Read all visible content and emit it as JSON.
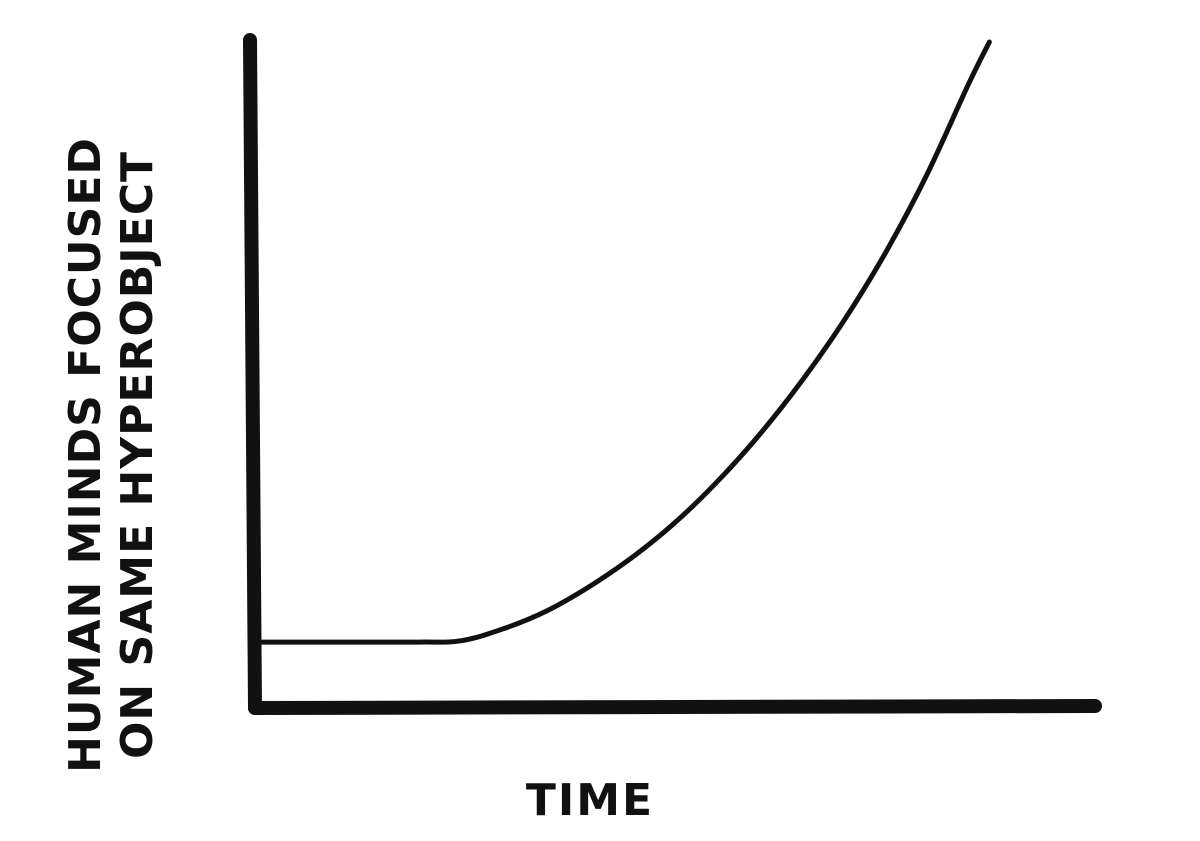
{
  "chart_data": {
    "type": "line",
    "title": "",
    "xlabel": "TIME",
    "ylabel_lines": [
      "HUMAN MINDS FOCUSED",
      "ON SAME HYPEROBJECT"
    ],
    "x_ticks": [],
    "y_ticks": [],
    "xlim": [
      0,
      10
    ],
    "ylim": [
      0,
      10
    ],
    "grid": false,
    "legend": "none",
    "series": [
      {
        "x": [
          0,
          1,
          2,
          2.5,
          3,
          3.5,
          4,
          4.5,
          5,
          5.5,
          6,
          6.5,
          7,
          7.5,
          8,
          8.5,
          8.75
        ],
        "y": [
          0.96,
          0.96,
          0.96,
          0.98,
          1.16,
          1.42,
          1.78,
          2.21,
          2.72,
          3.33,
          4.03,
          4.83,
          5.73,
          6.76,
          7.95,
          9.33,
          9.97
        ]
      }
    ],
    "colors": {
      "ink": "#111111",
      "background": "#ffffff"
    }
  }
}
